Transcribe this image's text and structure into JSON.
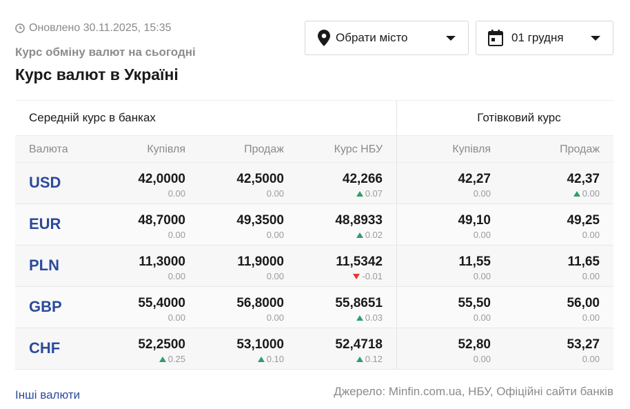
{
  "header": {
    "updated_text": "Оновлено 30.11.2025, 15:35",
    "subtitle": "Курс обміну валют на сьогодні",
    "title": "Курс валют в Україні"
  },
  "filters": {
    "city_label": "Обрати місто",
    "date_label": "01 грудня"
  },
  "table": {
    "group_bank": "Середній курс в банках",
    "group_cash": "Готівковий курс",
    "columns": {
      "currency": "Валюта",
      "buy": "Купівля",
      "sell": "Продаж",
      "nbu": "Курс НБУ",
      "cash_buy": "Купівля",
      "cash_sell": "Продаж"
    },
    "rows": [
      {
        "code": "USD",
        "buy": "42,0000",
        "buy_chg": "0.00",
        "buy_dir": "",
        "sell": "42,5000",
        "sell_chg": "0.00",
        "sell_dir": "",
        "nbu": "42,266",
        "nbu_chg": "0.07",
        "nbu_dir": "up",
        "cash_buy": "42,27",
        "cash_buy_chg": "0.00",
        "cash_buy_dir": "",
        "cash_sell": "42,37",
        "cash_sell_chg": "0.00",
        "cash_sell_dir": "up"
      },
      {
        "code": "EUR",
        "buy": "48,7000",
        "buy_chg": "0.00",
        "buy_dir": "",
        "sell": "49,3500",
        "sell_chg": "0.00",
        "sell_dir": "",
        "nbu": "48,8933",
        "nbu_chg": "0.02",
        "nbu_dir": "up",
        "cash_buy": "49,10",
        "cash_buy_chg": "0.00",
        "cash_buy_dir": "",
        "cash_sell": "49,25",
        "cash_sell_chg": "0.00",
        "cash_sell_dir": ""
      },
      {
        "code": "PLN",
        "buy": "11,3000",
        "buy_chg": "0.00",
        "buy_dir": "",
        "sell": "11,9000",
        "sell_chg": "0.00",
        "sell_dir": "",
        "nbu": "11,5342",
        "nbu_chg": "-0.01",
        "nbu_dir": "down",
        "cash_buy": "11,55",
        "cash_buy_chg": "0.00",
        "cash_buy_dir": "",
        "cash_sell": "11,65",
        "cash_sell_chg": "0.00",
        "cash_sell_dir": ""
      },
      {
        "code": "GBP",
        "buy": "55,4000",
        "buy_chg": "0.00",
        "buy_dir": "",
        "sell": "56,8000",
        "sell_chg": "0.00",
        "sell_dir": "",
        "nbu": "55,8651",
        "nbu_chg": "0.03",
        "nbu_dir": "up",
        "cash_buy": "55,50",
        "cash_buy_chg": "0.00",
        "cash_buy_dir": "",
        "cash_sell": "56,00",
        "cash_sell_chg": "0.00",
        "cash_sell_dir": ""
      },
      {
        "code": "CHF",
        "buy": "52,2500",
        "buy_chg": "0.25",
        "buy_dir": "up",
        "sell": "53,1000",
        "sell_chg": "0.10",
        "sell_dir": "up",
        "nbu": "52,4718",
        "nbu_chg": "0.12",
        "nbu_dir": "up",
        "cash_buy": "52,80",
        "cash_buy_chg": "0.00",
        "cash_buy_dir": "",
        "cash_sell": "53,27",
        "cash_sell_chg": "0.00",
        "cash_sell_dir": ""
      }
    ]
  },
  "footer": {
    "other_currencies": "Інші валюти",
    "source": "Джерело: Minfin.com.ua, НБУ, Офіційні сайти банків"
  },
  "colors": {
    "accent": "#2b4a9b",
    "up": "#2e9e6a",
    "down": "#e53935",
    "muted": "#8a8a8a"
  },
  "icons": {
    "updated": "clock-icon",
    "city": "location-pin-icon",
    "date": "calendar-icon",
    "dropdown": "caret-down-icon"
  }
}
